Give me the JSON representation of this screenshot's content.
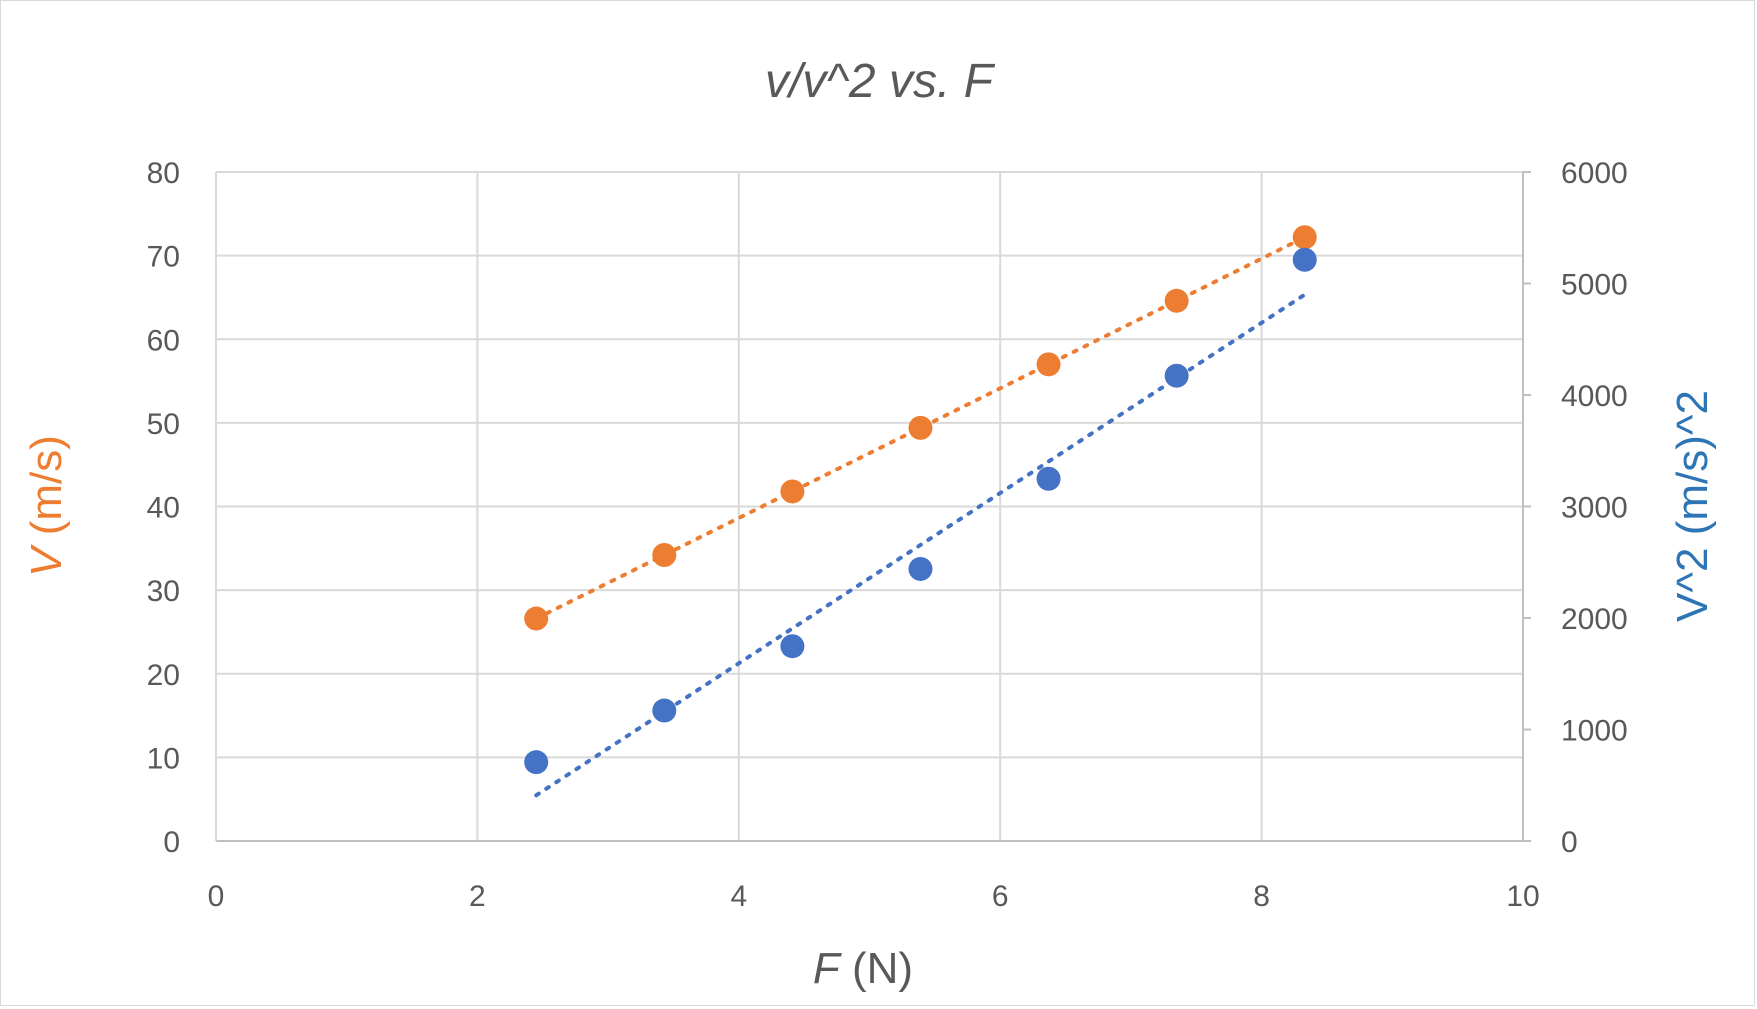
{
  "chart_data": {
    "type": "scatter",
    "title": "v/v^2 vs. F",
    "xlabel_var": "F",
    "xlabel_unit": " (N)",
    "ylabel_left_var": "V",
    "ylabel_left_unit": " (m/s)",
    "ylabel_right": "V^2 (m/s)^2",
    "xlim": [
      0,
      10
    ],
    "ylim_left": [
      0,
      80
    ],
    "ylim_right": [
      0,
      6000
    ],
    "x_ticks": [
      "0",
      "2",
      "4",
      "6",
      "8",
      "10"
    ],
    "y_left_ticks": [
      "0",
      "10",
      "20",
      "30",
      "40",
      "50",
      "60",
      "70",
      "80"
    ],
    "y_right_ticks": [
      "0",
      "1000",
      "2000",
      "3000",
      "4000",
      "5000",
      "6000"
    ],
    "grid": true,
    "colors": {
      "v": "#ED7D31",
      "v2": "#4472C4",
      "text": "#595959"
    },
    "series": [
      {
        "key": "v",
        "axis": "left",
        "x": [
          2.45,
          3.43,
          4.41,
          5.39,
          6.37,
          7.35,
          8.33
        ],
        "y": [
          26.6,
          34.2,
          41.8,
          49.4,
          57.0,
          64.6,
          72.2
        ],
        "trendline": {
          "x": [
            2.45,
            8.33
          ],
          "y": [
            26.6,
            72.2
          ]
        }
      },
      {
        "key": "v2",
        "axis": "right",
        "x": [
          2.45,
          3.43,
          4.41,
          5.39,
          6.37,
          7.35,
          8.33
        ],
        "y": [
          707,
          1170,
          1747,
          2440,
          3249,
          4173,
          5213
        ],
        "trendline": {
          "x": [
            2.45,
            8.33
          ],
          "y": [
            410,
            4900
          ]
        }
      }
    ]
  }
}
